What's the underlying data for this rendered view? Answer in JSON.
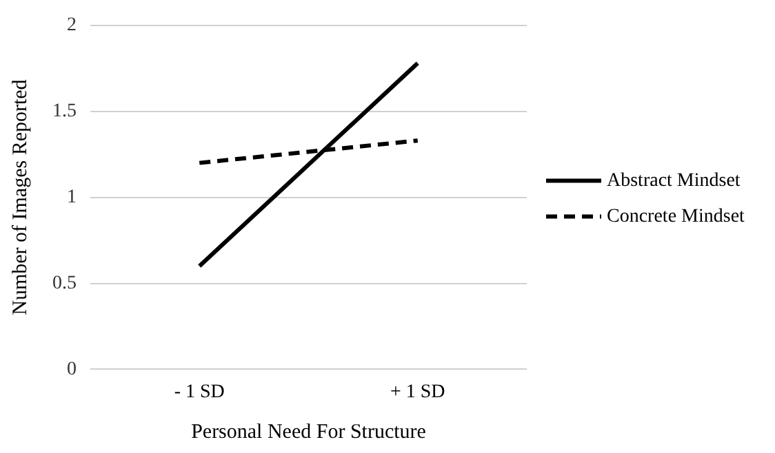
{
  "chart_data": {
    "type": "line",
    "xlabel": "Personal Need For Structure",
    "ylabel": "Number of Images Reported",
    "categories": [
      "- 1 SD",
      "+ 1 SD"
    ],
    "series": [
      {
        "name": "Abstract Mindset",
        "color": "#000000",
        "values": [
          0.6,
          1.78
        ],
        "line_style": "solid"
      },
      {
        "name": "Concrete Mindset",
        "color": "#000000",
        "values": [
          1.2,
          1.33
        ],
        "line_style": "dashed"
      }
    ],
    "ylim": [
      0,
      2
    ],
    "yticks": [
      0,
      0.5,
      1,
      1.5,
      2
    ],
    "grid": "y",
    "legend": "right",
    "marker": "none"
  }
}
